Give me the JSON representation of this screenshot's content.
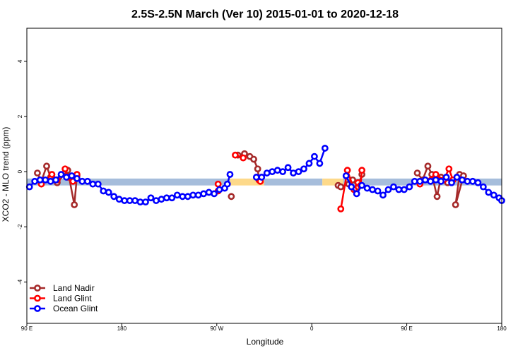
{
  "chart_data": {
    "type": "line",
    "title": "2.5S-2.5N March (Ver 10)   2015-01-01 to 2020-12-18",
    "xlabel": "Longitude",
    "ylabel": "XCO2 - MLO trend (ppm)",
    "xlim": [
      0,
      360
    ],
    "ylim": [
      -5.5,
      5.2
    ],
    "x_ticks": [
      {
        "value": 0,
        "label": "90 E"
      },
      {
        "value": 72,
        "label": "180"
      },
      {
        "value": 144,
        "label": "90 W"
      },
      {
        "value": 216,
        "label": "0"
      },
      {
        "value": 288,
        "label": "90 E"
      },
      {
        "value": 360,
        "label": "180"
      }
    ],
    "y_ticks": [
      -4,
      -2,
      0,
      2,
      4
    ],
    "bands": [
      {
        "x0": 0,
        "x1": 154,
        "y0": -0.5,
        "y1": -0.25,
        "color": "#a6bddb"
      },
      {
        "x0": 154,
        "x1": 180,
        "y0": -0.5,
        "y1": -0.25,
        "color": "#fdd98a"
      },
      {
        "x0": 180,
        "x1": 224,
        "y0": -0.5,
        "y1": -0.25,
        "color": "#a6bddb"
      },
      {
        "x0": 224,
        "x1": 240,
        "y0": -0.5,
        "y1": -0.25,
        "color": "#fdd98a"
      },
      {
        "x0": 240,
        "x1": 360,
        "y0": -0.5,
        "y1": -0.25,
        "color": "#a6bddb"
      }
    ],
    "series": [
      {
        "name": "Land Nadir",
        "color": "#a52a2a",
        "segments": [
          [
            [
              8,
              -0.05
            ],
            [
              11,
              -0.35
            ],
            [
              15,
              0.2
            ],
            [
              18,
              -0.2
            ],
            [
              23,
              -0.4
            ],
            [
              31,
              0.05
            ],
            [
              36,
              -1.2
            ],
            [
              38,
              -0.15
            ]
          ],
          [
            [
              155,
              -0.9
            ]
          ],
          [
            [
              160,
              0.6
            ],
            [
              165,
              0.65
            ],
            [
              169,
              0.55
            ],
            [
              172,
              0.45
            ],
            [
              175,
              0.1
            ],
            [
              176,
              -0.3
            ]
          ],
          [
            [
              236,
              -0.5
            ],
            [
              238,
              -0.55
            ],
            [
              244,
              -0.45
            ],
            [
              247,
              -0.3
            ],
            [
              251,
              -0.55
            ],
            [
              254,
              -0.1
            ]
          ],
          [
            [
              296,
              -0.05
            ],
            [
              300,
              -0.3
            ],
            [
              304,
              0.2
            ],
            [
              307,
              -0.1
            ],
            [
              311,
              -0.9
            ],
            [
              314,
              -0.2
            ],
            [
              319,
              -0.4
            ],
            [
              328,
              -0.1
            ],
            [
              325,
              -1.2
            ],
            [
              331,
              -0.15
            ]
          ]
        ]
      },
      {
        "name": "Land Glint",
        "color": "#ff0000",
        "segments": [
          [
            [
              11,
              -0.45
            ],
            [
              19,
              -0.1
            ],
            [
              23,
              -0.3
            ],
            [
              29,
              0.1
            ],
            [
              31,
              -0.2
            ],
            [
              35,
              -0.35
            ],
            [
              38,
              -0.1
            ]
          ],
          [
            [
              145,
              -0.45
            ],
            [
              145,
              -0.7
            ]
          ],
          [
            [
              158,
              0.6
            ],
            [
              164,
              0.5
            ]
          ],
          [
            [
              176,
              -0.3
            ],
            [
              177,
              -0.35
            ]
          ],
          [
            [
              238,
              -1.35
            ],
            [
              243,
              0.05
            ],
            [
              248,
              -0.65
            ],
            [
              251,
              -0.4
            ],
            [
              253,
              -0.5
            ],
            [
              254,
              0.05
            ]
          ],
          [
            [
              298,
              -0.45
            ],
            [
              310,
              -0.1
            ],
            [
              316,
              -0.3
            ],
            [
              320,
              0.1
            ],
            [
              323,
              -0.3
            ]
          ]
        ]
      },
      {
        "name": "Ocean Glint",
        "color": "#0000ff",
        "segments": [
          [
            [
              2,
              -0.55
            ],
            [
              6,
              -0.35
            ],
            [
              10,
              -0.3
            ],
            [
              14,
              -0.3
            ],
            [
              18,
              -0.35
            ],
            [
              22,
              -0.3
            ],
            [
              26,
              -0.1
            ],
            [
              30,
              -0.2
            ],
            [
              34,
              -0.15
            ],
            [
              38,
              -0.25
            ],
            [
              42,
              -0.35
            ],
            [
              46,
              -0.35
            ],
            [
              50,
              -0.45
            ],
            [
              54,
              -0.45
            ],
            [
              58,
              -0.7
            ],
            [
              62,
              -0.75
            ],
            [
              66,
              -0.9
            ],
            [
              70,
              -1.0
            ],
            [
              74,
              -1.05
            ],
            [
              78,
              -1.05
            ],
            [
              82,
              -1.05
            ],
            [
              86,
              -1.1
            ],
            [
              90,
              -1.1
            ],
            [
              94,
              -0.95
            ],
            [
              98,
              -1.05
            ],
            [
              102,
              -1.0
            ],
            [
              106,
              -0.95
            ],
            [
              110,
              -0.95
            ],
            [
              114,
              -0.85
            ],
            [
              118,
              -0.9
            ],
            [
              122,
              -0.9
            ],
            [
              126,
              -0.85
            ],
            [
              130,
              -0.85
            ],
            [
              134,
              -0.8
            ],
            [
              138,
              -0.75
            ],
            [
              142,
              -0.8
            ],
            [
              146,
              -0.65
            ],
            [
              150,
              -0.6
            ],
            [
              152,
              -0.45
            ],
            [
              154,
              -0.1
            ]
          ],
          [
            [
              174,
              -0.2
            ],
            [
              178,
              -0.2
            ],
            [
              182,
              -0.05
            ],
            [
              186,
              0.0
            ],
            [
              190,
              0.05
            ],
            [
              194,
              0.0
            ],
            [
              198,
              0.15
            ],
            [
              202,
              -0.05
            ],
            [
              206,
              0.0
            ],
            [
              210,
              0.1
            ],
            [
              214,
              0.3
            ],
            [
              218,
              0.55
            ],
            [
              222,
              0.3
            ],
            [
              226,
              0.85
            ]
          ],
          [
            [
              242,
              -0.15
            ],
            [
              246,
              -0.55
            ],
            [
              250,
              -0.8
            ],
            [
              254,
              -0.5
            ],
            [
              258,
              -0.6
            ],
            [
              262,
              -0.65
            ],
            [
              266,
              -0.7
            ],
            [
              270,
              -0.85
            ],
            [
              274,
              -0.65
            ],
            [
              278,
              -0.55
            ],
            [
              282,
              -0.65
            ],
            [
              286,
              -0.65
            ],
            [
              290,
              -0.55
            ],
            [
              294,
              -0.35
            ],
            [
              298,
              -0.35
            ],
            [
              302,
              -0.3
            ],
            [
              306,
              -0.35
            ],
            [
              310,
              -0.3
            ],
            [
              314,
              -0.35
            ],
            [
              318,
              -0.2
            ],
            [
              322,
              -0.4
            ],
            [
              326,
              -0.2
            ],
            [
              330,
              -0.3
            ],
            [
              334,
              -0.35
            ],
            [
              338,
              -0.35
            ],
            [
              342,
              -0.4
            ],
            [
              346,
              -0.55
            ],
            [
              350,
              -0.75
            ],
            [
              354,
              -0.85
            ],
            [
              358,
              -0.95
            ],
            [
              360,
              -1.05
            ]
          ]
        ]
      }
    ],
    "legend": {
      "position": "bottom-left",
      "entries": [
        "Land Nadir",
        "Land Glint",
        "Ocean Glint"
      ]
    }
  }
}
